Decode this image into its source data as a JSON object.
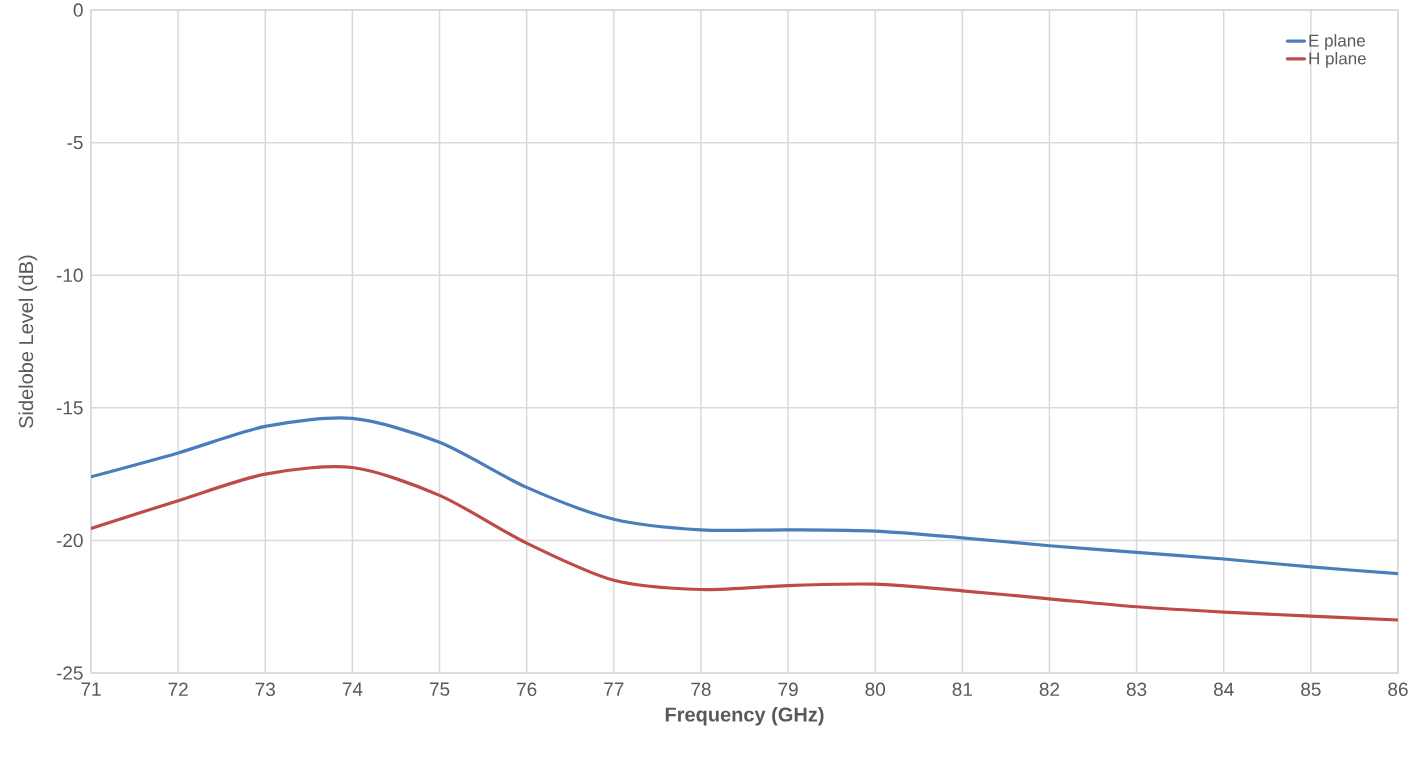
{
  "chart_data": {
    "type": "line",
    "xlabel": "Frequency (GHz)",
    "ylabel": "Sidelobe Level (dB)",
    "x": [
      71,
      72,
      73,
      74,
      75,
      76,
      77,
      78,
      79,
      80,
      81,
      82,
      83,
      84,
      85,
      86
    ],
    "series": [
      {
        "name": "E plane",
        "color": "#4a7ebb",
        "values": [
          -17.6,
          -16.7,
          -15.7,
          -15.4,
          -16.3,
          -18.0,
          -19.2,
          -19.6,
          -19.6,
          -19.65,
          -19.9,
          -20.2,
          -20.45,
          -20.7,
          -21.0,
          -21.25
        ]
      },
      {
        "name": "H plane",
        "color": "#be4b48",
        "values": [
          -19.55,
          -18.5,
          -17.5,
          -17.25,
          -18.3,
          -20.1,
          -21.5,
          -21.85,
          -21.7,
          -21.65,
          -21.9,
          -22.2,
          -22.5,
          -22.7,
          -22.85,
          -23.0
        ]
      }
    ],
    "xlim": [
      71,
      86
    ],
    "ylim": [
      -25,
      0
    ],
    "xticks": [
      71,
      72,
      73,
      74,
      75,
      76,
      77,
      78,
      79,
      80,
      81,
      82,
      83,
      84,
      85,
      86
    ],
    "yticks": [
      -25,
      -20,
      -15,
      -10,
      -5,
      0
    ],
    "grid": true,
    "legend": "top right",
    "marker": "none",
    "line_style": "solid"
  }
}
